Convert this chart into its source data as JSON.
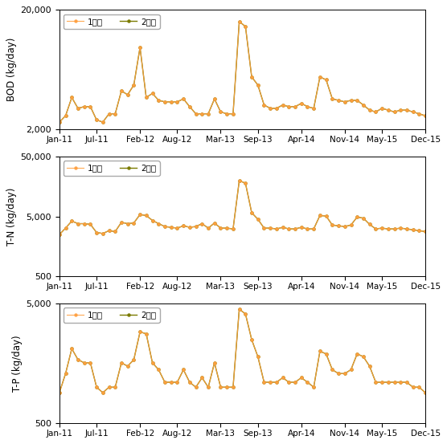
{
  "color_stage1": "#FFA040",
  "color_stage2": "#7B7B00",
  "x_tick_labels": [
    "Jan-11",
    "Jul-11",
    "Feb-12",
    "Aug-12",
    "Mar-13",
    "Sep-13",
    "Apr-14",
    "Nov-14",
    "May-15",
    "Dec-15"
  ],
  "x_tick_indices": [
    0,
    6,
    13,
    19,
    26,
    32,
    39,
    46,
    52,
    59
  ],
  "bod": [
    2300,
    2600,
    3700,
    3000,
    3100,
    3100,
    2400,
    2300,
    2700,
    2700,
    4200,
    3900,
    4700,
    9700,
    3700,
    4000,
    3500,
    3400,
    3400,
    3400,
    3600,
    3100,
    2700,
    2700,
    2700,
    3600,
    2800,
    2700,
    2700,
    16000,
    14500,
    5500,
    4700,
    3200,
    3000,
    3000,
    3200,
    3100,
    3100,
    3300,
    3100,
    3000,
    5500,
    5200,
    3600,
    3500,
    3400,
    3500,
    3500,
    3200,
    2900,
    2800,
    3000,
    2900,
    2800,
    2900,
    2900,
    2800,
    2700,
    2600
  ],
  "tn": [
    2500,
    3200,
    4200,
    3800,
    3800,
    3700,
    2700,
    2600,
    2900,
    2800,
    4000,
    3800,
    3900,
    5400,
    5200,
    4300,
    3800,
    3400,
    3300,
    3200,
    3500,
    3300,
    3400,
    3800,
    3200,
    3900,
    3200,
    3200,
    3100,
    20000,
    18000,
    5800,
    4500,
    3200,
    3200,
    3100,
    3300,
    3100,
    3100,
    3300,
    3100,
    3100,
    5200,
    5100,
    3600,
    3500,
    3400,
    3600,
    4900,
    4700,
    3700,
    3100,
    3200,
    3100,
    3100,
    3200,
    3100,
    3000,
    2900,
    2800
  ],
  "tp": [
    900,
    1300,
    2100,
    1700,
    1600,
    1600,
    1000,
    900,
    1000,
    1000,
    1600,
    1500,
    1700,
    2900,
    2800,
    1600,
    1400,
    1100,
    1100,
    1100,
    1400,
    1100,
    1000,
    1200,
    1000,
    1600,
    1000,
    1000,
    1000,
    4500,
    4100,
    2500,
    1800,
    1100,
    1100,
    1100,
    1200,
    1100,
    1100,
    1200,
    1100,
    1000,
    2000,
    1900,
    1400,
    1300,
    1300,
    1400,
    1900,
    1800,
    1500,
    1100,
    1100,
    1100,
    1100,
    1100,
    1100,
    1000,
    1000,
    900
  ],
  "panels": [
    {
      "ylabel": "BOD (kg/day)",
      "ylim": [
        2000,
        20000
      ],
      "yticks": [
        2000,
        20000
      ],
      "key": "bod"
    },
    {
      "ylabel": "T-N (kg/day)",
      "ylim": [
        500,
        50000
      ],
      "yticks": [
        500,
        5000,
        50000
      ],
      "key": "tn"
    },
    {
      "ylabel": "T-P (kg/day)",
      "ylim": [
        500,
        5000
      ],
      "yticks": [
        500,
        5000
      ],
      "key": "tp"
    }
  ]
}
